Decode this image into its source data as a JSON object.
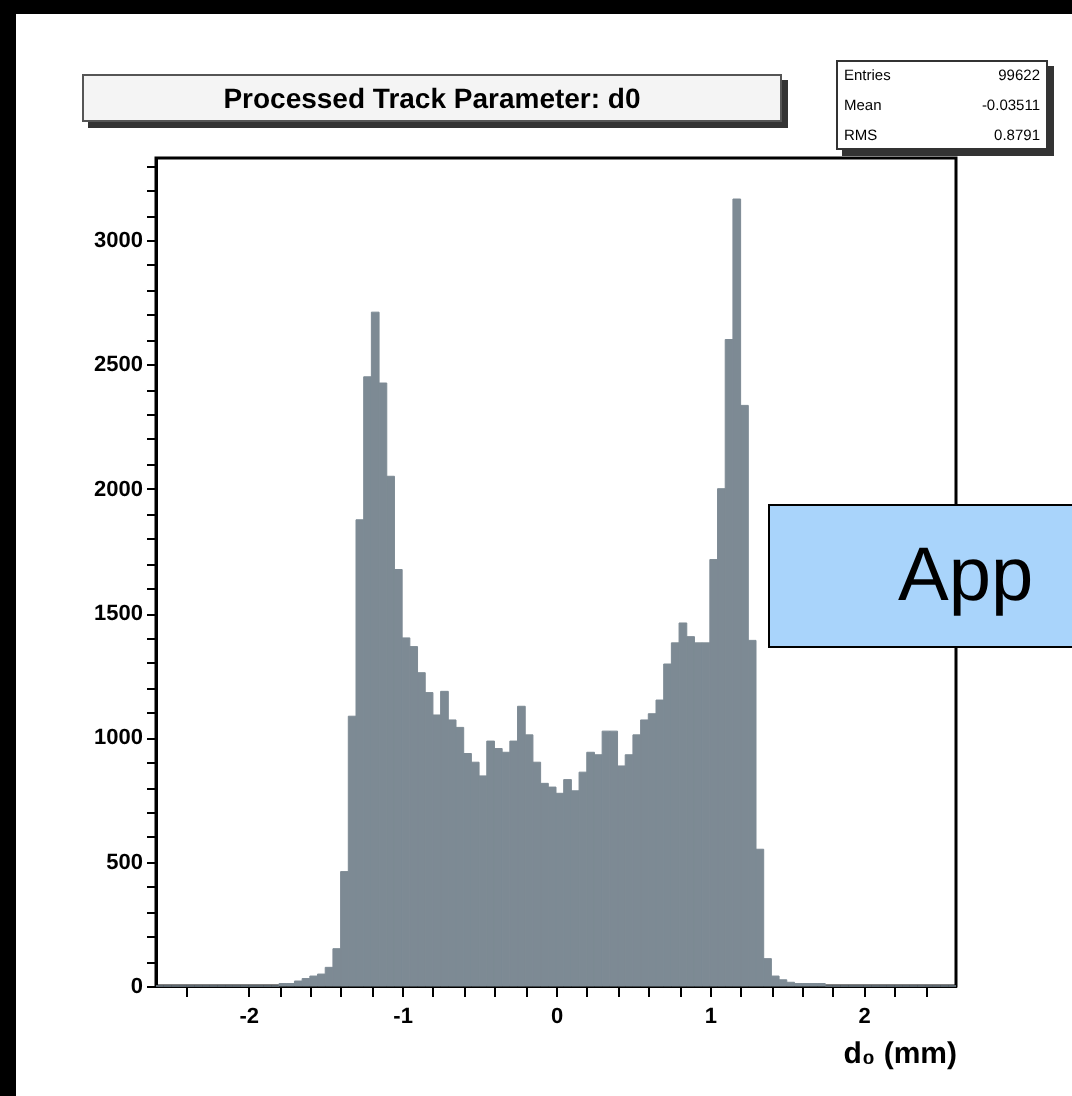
{
  "chart_data": {
    "type": "histogram",
    "title": "Processed Track Parameter: d0",
    "xlabel": "d₀ (mm)",
    "bins": [
      -2.6,
      -2.55,
      -2.5,
      -2.45,
      -2.4,
      -2.35,
      -2.3,
      -2.25,
      -2.2,
      -2.15,
      -2.1,
      -2.05,
      -2.0,
      -1.95,
      -1.9,
      -1.85,
      -1.8,
      -1.75,
      -1.7,
      -1.65,
      -1.6,
      -1.55,
      -1.5,
      -1.45,
      -1.4,
      -1.35,
      -1.3,
      -1.25,
      -1.2,
      -1.15,
      -1.1,
      -1.05,
      -1.0,
      -0.95,
      -0.9,
      -0.85,
      -0.8,
      -0.75,
      -0.7,
      -0.65,
      -0.6,
      -0.55,
      -0.5,
      -0.45,
      -0.4,
      -0.35,
      -0.3,
      -0.25,
      -0.2,
      -0.15,
      -0.1,
      -0.05,
      0.0,
      0.05,
      0.1,
      0.15,
      0.2,
      0.25,
      0.3,
      0.35,
      0.4,
      0.45,
      0.5,
      0.55,
      0.6,
      0.65,
      0.7,
      0.75,
      0.8,
      0.85,
      0.9,
      0.95,
      1.0,
      1.05,
      1.1,
      1.15,
      1.2,
      1.25,
      1.3,
      1.35,
      1.4,
      1.45,
      1.5,
      1.55,
      1.6,
      1.65,
      1.7,
      1.75,
      1.8,
      1.85,
      1.9,
      1.95,
      2.0,
      2.05,
      2.1,
      2.15,
      2.2,
      2.25,
      2.3,
      2.35,
      2.4,
      2.45,
      2.5,
      2.55,
      2.6
    ],
    "values": [
      0,
      0,
      0,
      0,
      0,
      0,
      0,
      0,
      0,
      0,
      0,
      0,
      0,
      0,
      0,
      0,
      10,
      10,
      20,
      30,
      40,
      48,
      75,
      150,
      460,
      1085,
      1875,
      2450,
      2710,
      2425,
      2050,
      1675,
      1400,
      1365,
      1260,
      1180,
      1090,
      1185,
      1070,
      1040,
      935,
      900,
      845,
      985,
      955,
      940,
      985,
      1125,
      1010,
      900,
      815,
      800,
      775,
      830,
      785,
      860,
      940,
      930,
      1025,
      1025,
      885,
      930,
      1010,
      1070,
      1095,
      1150,
      1295,
      1380,
      1460,
      1405,
      1380,
      1380,
      1715,
      2000,
      2600,
      3165,
      2335,
      1390,
      550,
      110,
      40,
      25,
      15,
      10,
      10,
      10,
      10,
      0,
      0,
      0,
      0,
      0,
      0,
      0,
      0,
      0,
      0,
      0,
      0,
      0,
      0,
      0,
      0,
      0
    ],
    "color": "#7d8a94",
    "xlim": [
      -2.6,
      2.6
    ],
    "xticks": [
      {
        "value": -2.4,
        "label": null
      },
      -2,
      {
        "value": -1.8,
        "label": null
      },
      {
        "value": -1.6,
        "label": null
      },
      {
        "value": -1.4,
        "label": null
      },
      {
        "value": -1.2,
        "label": null
      },
      -1,
      {
        "value": -0.8,
        "label": null
      },
      {
        "value": -0.6,
        "label": null
      },
      {
        "value": -0.4,
        "label": null
      },
      {
        "value": -0.2,
        "label": null
      },
      0,
      {
        "value": 0.2,
        "label": null
      },
      {
        "value": 0.4,
        "label": null
      },
      {
        "value": 0.6,
        "label": null
      },
      {
        "value": 0.8,
        "label": null
      },
      1,
      {
        "value": 1.2,
        "label": null
      },
      {
        "value": 1.4,
        "label": null
      },
      {
        "value": 1.6,
        "label": null
      },
      {
        "value": 1.8,
        "label": null
      },
      2,
      {
        "value": 2.2,
        "label": null
      },
      {
        "value": 2.4,
        "label": null
      }
    ],
    "ylim": [
      0,
      3330
    ],
    "yticks": [
      0,
      {
        "value": 100,
        "label": null
      },
      {
        "value": 200,
        "label": null
      },
      {
        "value": 300,
        "label": null
      },
      {
        "value": 400,
        "label": null
      },
      500,
      {
        "value": 600,
        "label": null
      },
      {
        "value": 700,
        "label": null
      },
      {
        "value": 800,
        "label": null
      },
      {
        "value": 900,
        "label": null
      },
      1000,
      {
        "value": 1100,
        "label": null
      },
      {
        "value": 1200,
        "label": null
      },
      {
        "value": 1300,
        "label": null
      },
      {
        "value": 1400,
        "label": null
      },
      1500,
      {
        "value": 1600,
        "label": null
      },
      {
        "value": 1700,
        "label": null
      },
      {
        "value": 1800,
        "label": null
      },
      {
        "value": 1900,
        "label": null
      },
      2000,
      {
        "value": 2100,
        "label": null
      },
      {
        "value": 2200,
        "label": null
      },
      {
        "value": 2300,
        "label": null
      },
      {
        "value": 2400,
        "label": null
      },
      2500,
      {
        "value": 2600,
        "label": null
      },
      {
        "value": 2700,
        "label": null
      },
      {
        "value": 2800,
        "label": null
      },
      {
        "value": 2900,
        "label": null
      },
      3000,
      {
        "value": 3100,
        "label": null
      },
      {
        "value": 3200,
        "label": null
      },
      {
        "value": 3300,
        "label": null
      }
    ],
    "grid": false,
    "annotations": [
      "Entries",
      "99622",
      "Mean",
      "-0.03511",
      "RMS",
      "0.8791",
      "App"
    ]
  }
}
